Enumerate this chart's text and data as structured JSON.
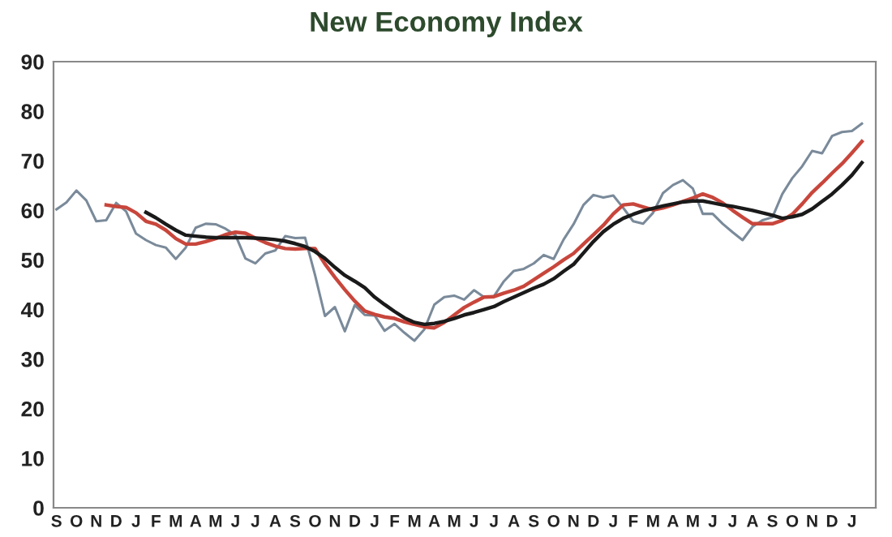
{
  "chart_data": {
    "type": "line",
    "title": "New Economy Index",
    "categories": [
      "S",
      null,
      "O",
      null,
      "N",
      null,
      "D",
      null,
      "J",
      null,
      "F",
      null,
      "M",
      null,
      "A",
      null,
      "M",
      null,
      "J",
      null,
      "J",
      null,
      "A",
      null,
      "S",
      null,
      "O",
      null,
      "N",
      null,
      "D",
      null,
      "J",
      null,
      "F",
      null,
      "M",
      null,
      "A",
      null,
      "M",
      null,
      "J",
      null,
      "J",
      null,
      "A",
      null,
      "S",
      null,
      "O",
      null,
      "N",
      null,
      "D",
      null,
      "J",
      null,
      "F",
      null,
      "M",
      null,
      "A",
      null,
      "M",
      null,
      "J",
      null,
      "J",
      null,
      "A",
      null,
      "S",
      null,
      "O",
      null,
      "N",
      null,
      "D",
      null,
      "J",
      null
    ],
    "ylim": [
      0,
      90
    ],
    "yticks": [
      0,
      10,
      20,
      30,
      40,
      50,
      60,
      70,
      80,
      90
    ],
    "grid": false,
    "legend": false,
    "marker": "none",
    "line_style": "solid",
    "series": [
      {
        "color": "#7a8a9a",
        "values": [
          60.2,
          61.6,
          64,
          62,
          57.8,
          58,
          61.5,
          59.8,
          55.3,
          54,
          53,
          52.5,
          50.2,
          52.5,
          56.5,
          57.3,
          57.2,
          56.3,
          55,
          50.3,
          49.3,
          51.3,
          51.9,
          54.8,
          54.4,
          54.5,
          47,
          38.7,
          40.5,
          35.6,
          40.9,
          38.9,
          38.8,
          35.7,
          37.1,
          35.3,
          33.7,
          36,
          41,
          42.5,
          42.8,
          42,
          43.9,
          42.5,
          42.7,
          45.7,
          47.8,
          48.2,
          49.3,
          51,
          50.2,
          54.1,
          57.2,
          61.1,
          63.1,
          62.6,
          63,
          60.5,
          57.8,
          57.3,
          59.5,
          63.5,
          65.1,
          66.1,
          64.4,
          59.3,
          59.3,
          57.3,
          55.6,
          54,
          56.7,
          58,
          58.6,
          63.3,
          66.5,
          68.9,
          72,
          71.5,
          75,
          75.8,
          76,
          77.5
        ]
      },
      {
        "color": "#c8463c",
        "values": [
          null,
          null,
          null,
          null,
          null,
          61.1,
          60.8,
          60.6,
          59.5,
          57.8,
          57.2,
          56,
          54.3,
          53.2,
          53.2,
          53.7,
          54.3,
          55.1,
          55.6,
          55.4,
          54.4,
          53.5,
          52.8,
          52.3,
          52.2,
          52.3,
          52.3,
          49.2,
          46.5,
          44,
          41.7,
          39.7,
          39,
          38.5,
          38.2,
          37.5,
          37,
          36.5,
          36.3,
          37.4,
          38.9,
          40.4,
          41.5,
          42.5,
          42.6,
          43.3,
          43.9,
          44.7,
          46,
          47.3,
          48.6,
          50,
          51.3,
          53.2,
          55.1,
          57,
          59.3,
          61.1,
          61.3,
          60.7,
          60.1,
          60.5,
          61.1,
          61.8,
          62.5,
          63.3,
          62.6,
          61.5,
          60,
          58.6,
          57.3,
          57.3,
          57.3,
          58,
          59.2,
          61.3,
          63.6,
          65.5,
          67.5,
          69.4,
          71.6,
          73.9
        ]
      },
      {
        "color": "#1a1a1a",
        "values": [
          null,
          null,
          null,
          null,
          null,
          null,
          null,
          null,
          null,
          59.6,
          58.5,
          57.2,
          56,
          55,
          54.8,
          54.6,
          54.5,
          54.5,
          54.5,
          54.5,
          54.4,
          54.3,
          54.1,
          53.8,
          53.3,
          52.7,
          51.7,
          50.3,
          48.5,
          46.9,
          45.7,
          44.4,
          42.5,
          41,
          39.6,
          38.3,
          37.4,
          37,
          37.2,
          37.6,
          38.2,
          38.9,
          39.4,
          40,
          40.6,
          41.6,
          42.5,
          43.4,
          44.3,
          45.1,
          46.2,
          47.7,
          49.1,
          51.4,
          53.7,
          55.7,
          57.2,
          58.4,
          59.2,
          59.9,
          60.4,
          60.9,
          61.3,
          61.7,
          61.9,
          61.9,
          61.5,
          61.1,
          60.8,
          60.4,
          60,
          59.5,
          59,
          58.4,
          58.7,
          59.2,
          60.3,
          61.8,
          63.3,
          65.1,
          67.1,
          69.6
        ]
      }
    ]
  }
}
